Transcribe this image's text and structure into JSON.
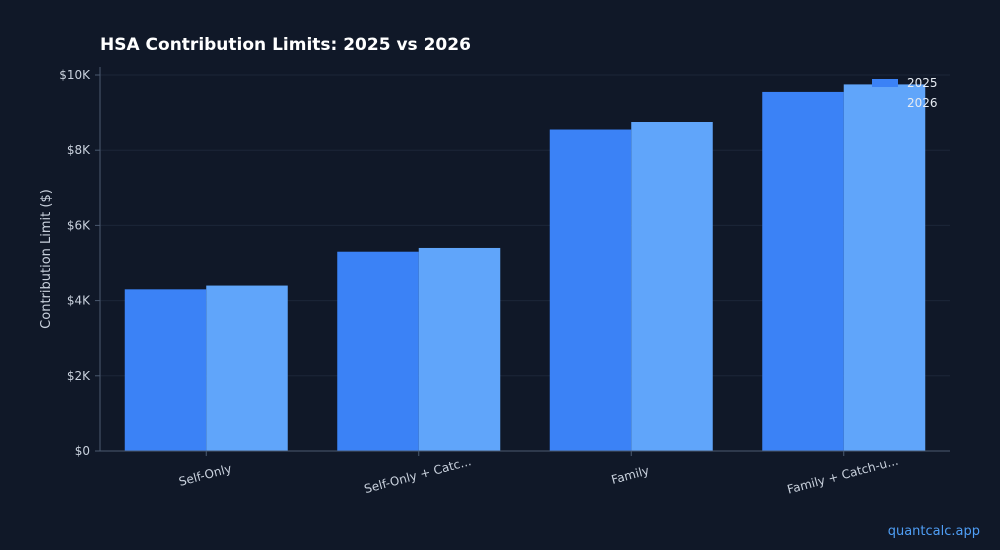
{
  "chart_data": {
    "type": "bar",
    "title": "HSA Contribution Limits: 2025 vs 2026",
    "xlabel": "",
    "ylabel": "Contribution Limit ($)",
    "categories": [
      "Self-Only",
      "Self-Only + Catc...",
      "Family",
      "Family + Catch-u..."
    ],
    "series": [
      {
        "name": "2025",
        "values": [
          4300,
          5300,
          8550,
          9550
        ],
        "color": "#3b82f6"
      },
      {
        "name": "2026",
        "values": [
          4400,
          5400,
          8750,
          9750
        ],
        "color": "#60a5fa"
      }
    ],
    "ylim": [
      0,
      10000
    ],
    "yticks": [
      0,
      2000,
      4000,
      6000,
      8000,
      10000
    ],
    "ytick_labels": [
      "$0",
      "$2K",
      "$4K",
      "$6K",
      "$8K",
      "$10K"
    ],
    "grid": true,
    "legend_position": "top-right",
    "colors": {
      "background": "#101828",
      "axis": "#4b5a70",
      "grid": "#1c2638",
      "text": "#c9d1dd"
    }
  },
  "watermark": "quantcalc.app"
}
